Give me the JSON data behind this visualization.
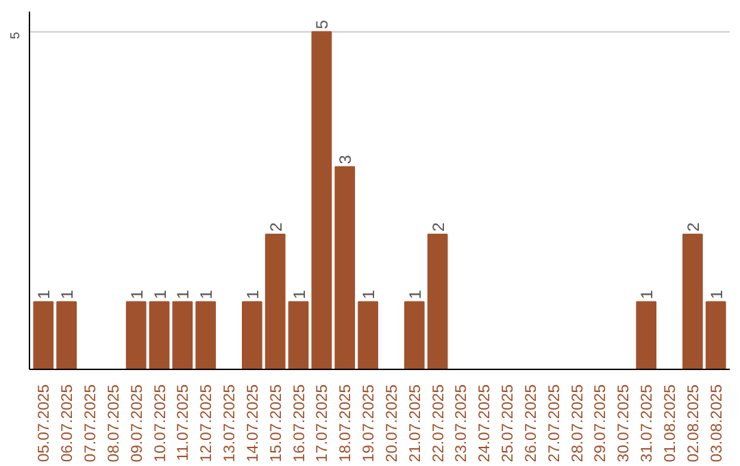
{
  "chart_data": {
    "type": "bar",
    "categories": [
      "05.07.2025",
      "06.07.2025",
      "07.07.2025",
      "08.07.2025",
      "09.07.2025",
      "10.07.2025",
      "11.07.2025",
      "12.07.2025",
      "13.07.2025",
      "14.07.2025",
      "15.07.2025",
      "16.07.2025",
      "17.07.2025",
      "18.07.2025",
      "19.07.2025",
      "20.07.2025",
      "21.07.2025",
      "22.07.2025",
      "23.07.2025",
      "24.07.2025",
      "25.07.2025",
      "26.07.2025",
      "27.07.2025",
      "28.07.2025",
      "29.07.2025",
      "30.07.2025",
      "31.07.2025",
      "01.08.2025",
      "02.08.2025",
      "03.08.2025"
    ],
    "values": [
      1,
      1,
      0,
      0,
      1,
      1,
      1,
      1,
      0,
      1,
      2,
      1,
      5,
      3,
      1,
      0,
      1,
      2,
      0,
      0,
      0,
      0,
      0,
      0,
      0,
      0,
      1,
      0,
      2,
      1
    ],
    "value_labels": [
      "1",
      "1",
      null,
      null,
      "1",
      "1",
      "1",
      "1",
      null,
      "1",
      "2",
      "1",
      "5",
      "3",
      "1",
      null,
      "1",
      "2",
      null,
      null,
      null,
      null,
      null,
      null,
      null,
      null,
      "1",
      null,
      "2",
      "1"
    ],
    "color": "#a0522d",
    "ylim": [
      0,
      5.3
    ],
    "yticks": [
      5
    ],
    "grid": "y"
  }
}
